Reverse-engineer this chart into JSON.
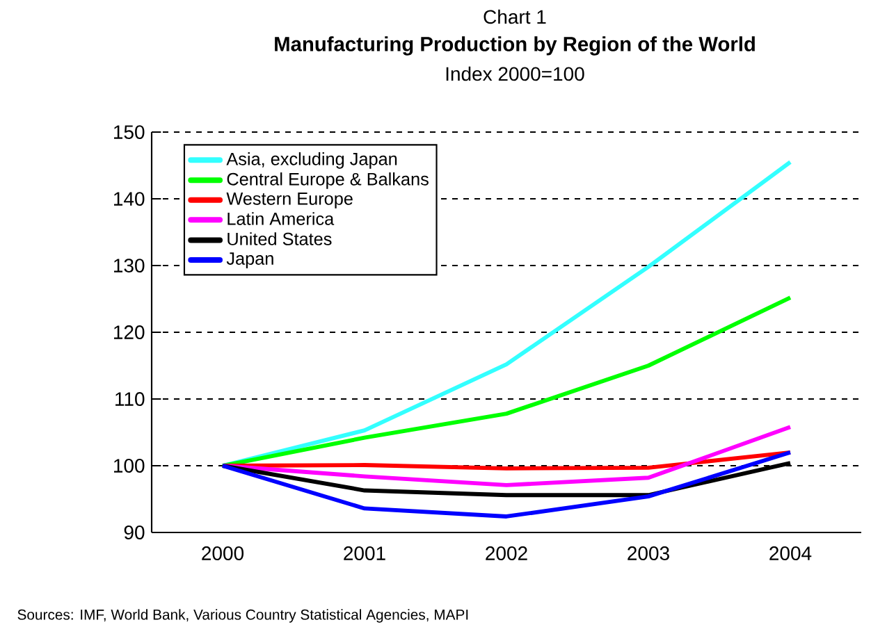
{
  "chart_data": {
    "type": "line",
    "title": "Manufacturing Production by Region of the World",
    "subtitle": "Index 2000=100",
    "annotations": [
      "Chart 1",
      "Sources:  IMF, World Bank, Various Country Statistical Agencies, MAPI"
    ],
    "categories": [
      "2000",
      "2001",
      "2002",
      "2003",
      "2004"
    ],
    "series": [
      {
        "name": "Asia, excluding Japan",
        "color": "#33ffff",
        "values": [
          100,
          105.3,
          115.2,
          129.8,
          145.5
        ]
      },
      {
        "name": "Central Europe & Balkans",
        "color": "#00ff00",
        "values": [
          100,
          104.2,
          107.8,
          115.0,
          125.2
        ]
      },
      {
        "name": "Western Europe",
        "color": "#ff0000",
        "values": [
          100,
          100.1,
          99.6,
          99.7,
          102.0
        ]
      },
      {
        "name": "Latin America",
        "color": "#ff00ff",
        "values": [
          100,
          98.4,
          97.1,
          98.2,
          105.8
        ]
      },
      {
        "name": "United States",
        "color": "#000000",
        "values": [
          100,
          96.3,
          95.6,
          95.6,
          100.4
        ]
      },
      {
        "name": "Japan",
        "color": "#0000ff",
        "values": [
          100,
          93.6,
          92.4,
          95.4,
          102.0
        ]
      }
    ],
    "ylim": [
      90,
      150
    ],
    "yticks": [
      90,
      100,
      110,
      120,
      130,
      140,
      150
    ],
    "grid": "y",
    "legend": "top left",
    "marker": "none",
    "line_style": "solid"
  }
}
